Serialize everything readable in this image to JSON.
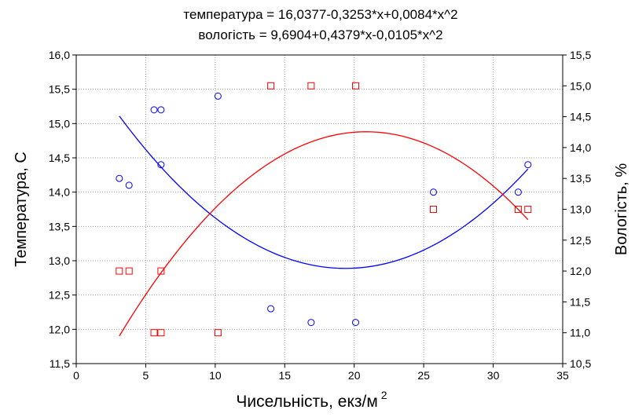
{
  "chart_data": {
    "type": "scatter",
    "title_lines": [
      "температура = 16,0377-0,3253*x+0,0084*x^2",
      "вологість = 9,6904+0,4379*x-0,0105*x^2"
    ],
    "xlabel": "Чисельність, екз/м",
    "xlabel_superscript": "2",
    "ylabel_left": "Температура, С",
    "ylabel_right": "Вологість, %",
    "xlim": [
      0,
      35
    ],
    "ylim_left": [
      11.5,
      16.0
    ],
    "ylim_right": [
      10.5,
      15.5
    ],
    "x_ticks": [
      "0",
      "5",
      "10",
      "15",
      "20",
      "25",
      "30",
      "35"
    ],
    "y_left_ticks": [
      "11,5",
      "12,0",
      "12,5",
      "13,0",
      "13,5",
      "14,0",
      "14,5",
      "15,0",
      "15,5",
      "16,0"
    ],
    "y_right_ticks": [
      "10,5",
      "11,0",
      "11,5",
      "12,0",
      "12,5",
      "13,0",
      "13,5",
      "14,0",
      "14,5",
      "15,0",
      "15,5"
    ],
    "grid": true,
    "series": [
      {
        "axis": "left",
        "marker": "circle",
        "color": "#0000ff",
        "x": [
          3.1,
          3.8,
          5.6,
          6.1,
          6.1,
          10.2,
          14.0,
          16.9,
          20.1,
          25.7,
          31.8,
          32.5
        ],
        "y": [
          14.2,
          14.1,
          15.2,
          15.2,
          14.4,
          15.4,
          12.3,
          12.1,
          12.1,
          14.0,
          14.0,
          14.4
        ]
      },
      {
        "axis": "right",
        "marker": "square",
        "color": "#ff0000",
        "x": [
          3.1,
          3.8,
          5.6,
          6.1,
          6.1,
          10.2,
          14.0,
          16.9,
          20.1,
          25.7,
          31.8,
          32.5
        ],
        "y": [
          12.0,
          12.0,
          11.0,
          11.0,
          12.0,
          11.0,
          15.0,
          15.0,
          15.0,
          13.0,
          13.0,
          13.0
        ]
      }
    ],
    "fits": [
      {
        "axis": "left",
        "color": "#0000ff",
        "coef": [
          16.0377,
          -0.3253,
          0.0084
        ],
        "x_range": [
          3.1,
          32.5
        ]
      },
      {
        "axis": "right",
        "color": "#ff0000",
        "coef": [
          9.6904,
          0.4379,
          -0.0105
        ],
        "x_range": [
          3.1,
          32.5
        ]
      }
    ]
  }
}
